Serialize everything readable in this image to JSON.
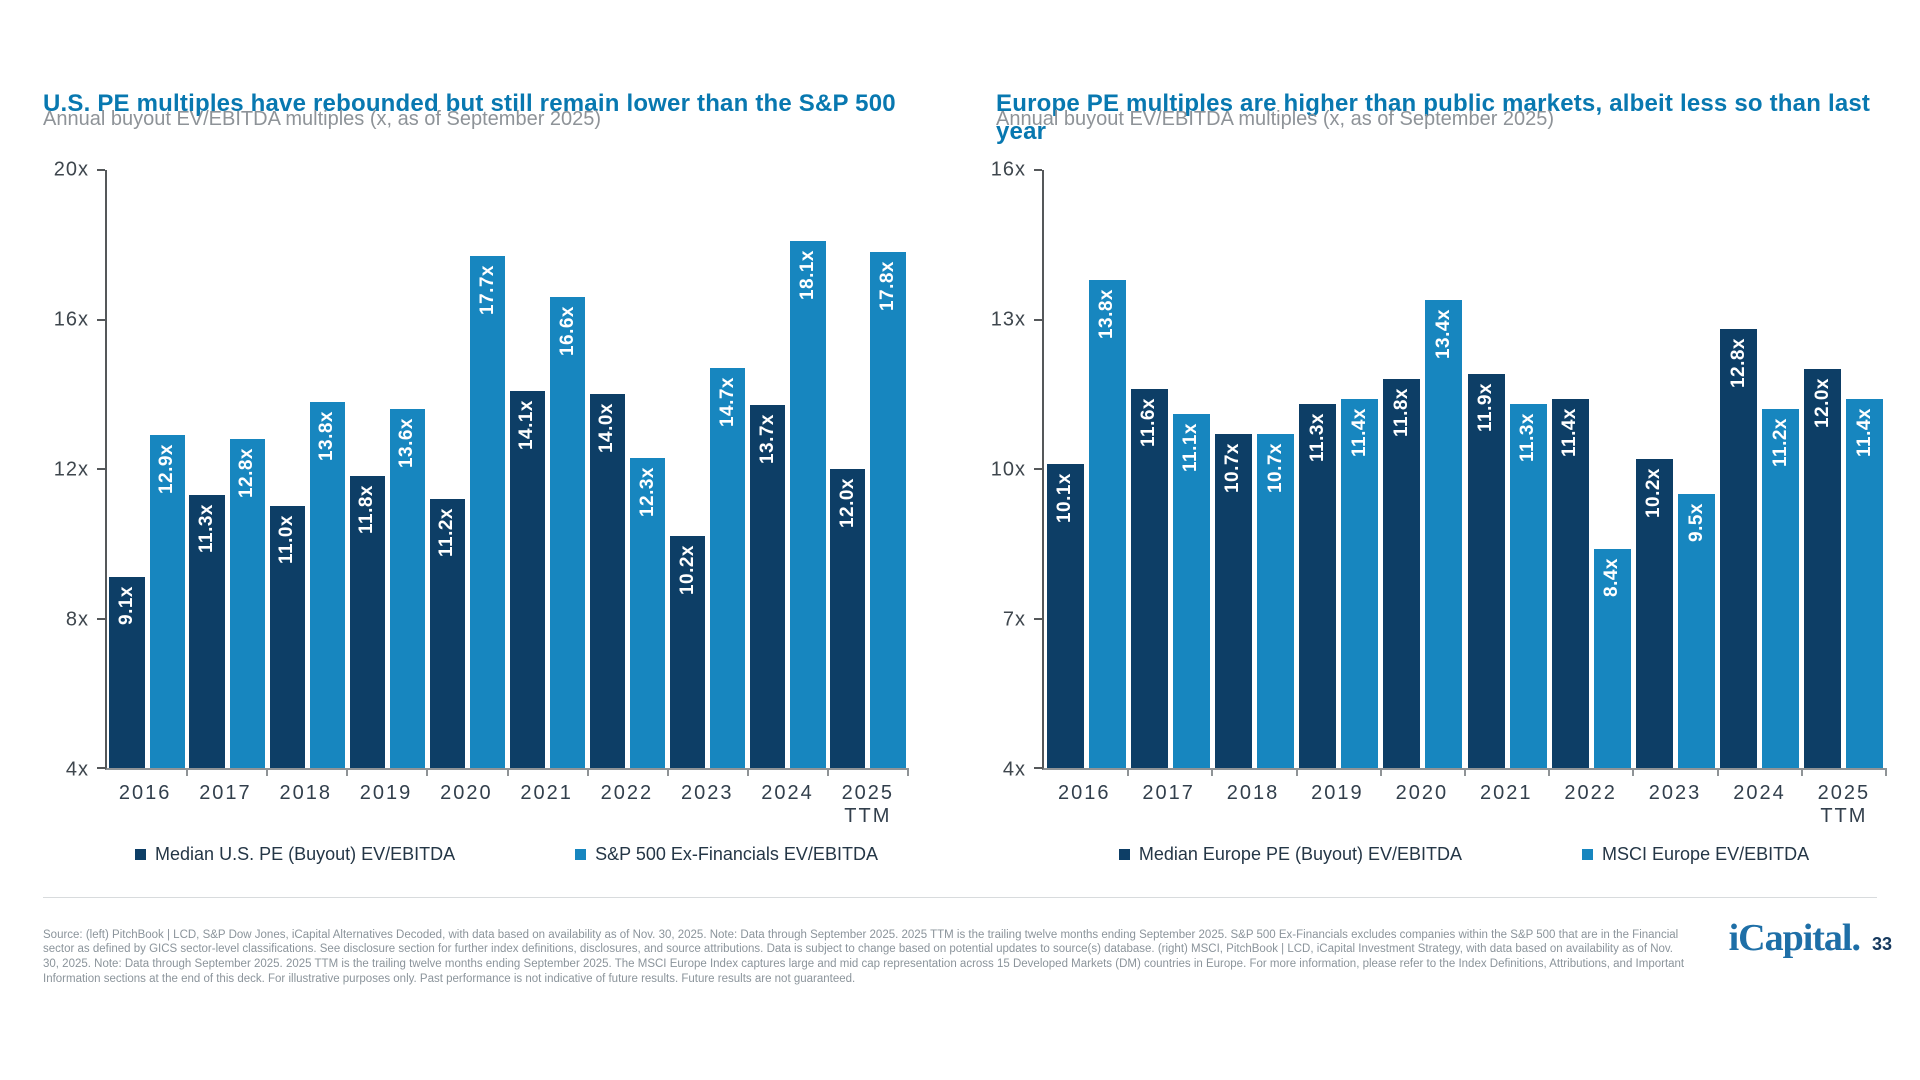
{
  "page": {
    "background": "#ffffff",
    "title_color": "#0878b0",
    "dark_series_color": "#0d3e66",
    "light_series_color": "#1786bf"
  },
  "chart_data": [
    {
      "type": "bar",
      "title": "U.S. PE multiples have rebounded but still remain lower than the S&P 500",
      "subtitle": "Annual buyout EV/EBITDA multiples (x, as of September 2025)",
      "categories": [
        "2016",
        "2017",
        "2018",
        "2019",
        "2020",
        "2021",
        "2022",
        "2023",
        "2024",
        "2025"
      ],
      "category_sublabels": [
        "",
        "",
        "",
        "",
        "",
        "",
        "",
        "",
        "",
        "TTM"
      ],
      "series": [
        {
          "name": "Median U.S. PE (Buyout) EV/EBITDA",
          "color": "#0d3e66",
          "values": [
            9.1,
            11.3,
            11.0,
            11.8,
            11.2,
            14.1,
            14.0,
            10.2,
            13.7,
            12.0
          ]
        },
        {
          "name": "S&P 500 Ex-Financials EV/EBITDA",
          "color": "#1786bf",
          "values": [
            12.9,
            12.8,
            13.8,
            13.6,
            17.7,
            16.6,
            12.3,
            14.7,
            18.1,
            17.8
          ]
        }
      ],
      "ylim": [
        4,
        20
      ],
      "yticks": [
        "20x",
        "16x",
        "12x",
        "8x",
        "4x"
      ],
      "value_suffix": "x",
      "grid": false,
      "legend_position": "bottom"
    },
    {
      "type": "bar",
      "title": "Europe PE multiples are higher than public markets, albeit less so than last year",
      "subtitle": "Annual buyout EV/EBITDA multiples (x, as of September 2025)",
      "categories": [
        "2016",
        "2017",
        "2018",
        "2019",
        "2020",
        "2021",
        "2022",
        "2023",
        "2024",
        "2025"
      ],
      "category_sublabels": [
        "",
        "",
        "",
        "",
        "",
        "",
        "",
        "",
        "",
        "TTM"
      ],
      "series": [
        {
          "name": "Median Europe PE (Buyout) EV/EBITDA",
          "color": "#0d3e66",
          "values": [
            10.1,
            11.6,
            10.7,
            11.3,
            11.8,
            11.9,
            11.4,
            10.2,
            12.8,
            12.0
          ]
        },
        {
          "name": "MSCI Europe EV/EBITDA",
          "color": "#1786bf",
          "values": [
            13.8,
            11.1,
            10.7,
            11.4,
            13.4,
            11.3,
            8.4,
            9.5,
            11.2,
            11.4
          ]
        }
      ],
      "ylim": [
        4,
        16
      ],
      "yticks": [
        "16x",
        "13x",
        "10x",
        "7x",
        "4x"
      ],
      "value_suffix": "x",
      "grid": false,
      "legend_position": "bottom"
    }
  ],
  "footer": {
    "source_text": "Source: (left) PitchBook | LCD, S&P Dow Jones, iCapital Alternatives Decoded, with data based on availability as of Nov. 30, 2025. Note: Data through September 2025. 2025 TTM is the trailing twelve months ending September 2025. S&P 500 Ex-Financials excludes companies within the S&P 500 that are in the Financial sector as defined by GICS sector-level classifications. See disclosure section for further index definitions, disclosures, and source attributions. Data is subject to change based on potential updates to source(s) database. (right) MSCI, PitchBook | LCD, iCapital Investment Strategy, with data based on availability as of Nov. 30, 2025. Note: Data through September 2025. 2025 TTM is the trailing twelve months ending September 2025. The MSCI Europe Index captures large and mid cap representation across 15 Developed Markets (DM) countries in Europe. For more information, please refer to the Index Definitions, Attributions, and Important Information sections at the end of this deck. For illustrative purposes only. Past performance is not indicative of future results. Future results are not guaranteed.",
    "logo_text": "iCapital.",
    "page_number": "33"
  }
}
